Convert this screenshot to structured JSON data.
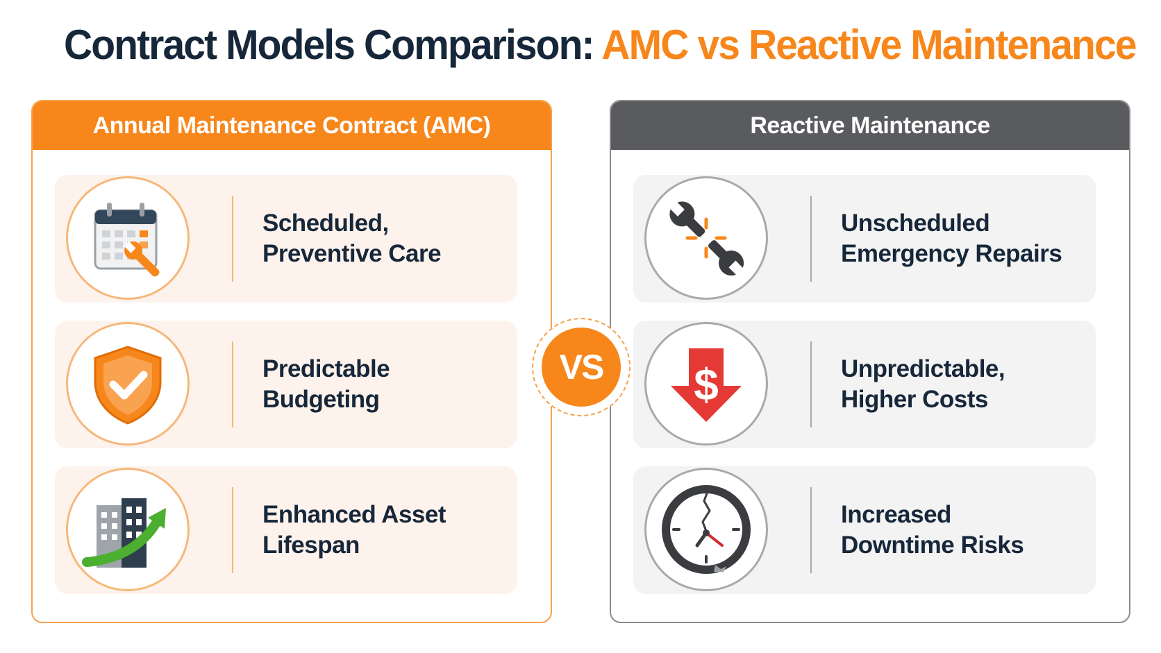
{
  "title": {
    "part1": "Contract Models Comparison: ",
    "part2": "AMC vs Reactive Maintenance"
  },
  "vs_label": "VS",
  "left_panel": {
    "header": "Annual Maintenance Contract (AMC)",
    "accent_color": "#f7861b",
    "items": [
      {
        "line1": "Scheduled,",
        "line2": "Preventive Care",
        "icon": "calendar-wrench-icon"
      },
      {
        "line1": "Predictable",
        "line2": "Budgeting",
        "icon": "shield-check-icon"
      },
      {
        "line1": "Enhanced Asset",
        "line2": "Lifespan",
        "icon": "building-growth-arrow-icon"
      }
    ]
  },
  "right_panel": {
    "header": "Reactive Maintenance",
    "accent_color": "#595b5e",
    "items": [
      {
        "line1": "Unscheduled",
        "line2": "Emergency Repairs",
        "icon": "broken-wrench-icon"
      },
      {
        "line1": "Unpredictable,",
        "line2": "Higher Costs",
        "icon": "dollar-down-arrow-icon"
      },
      {
        "line1": "Increased",
        "line2": "Downtime Risks",
        "icon": "cracked-clock-icon"
      }
    ]
  }
}
